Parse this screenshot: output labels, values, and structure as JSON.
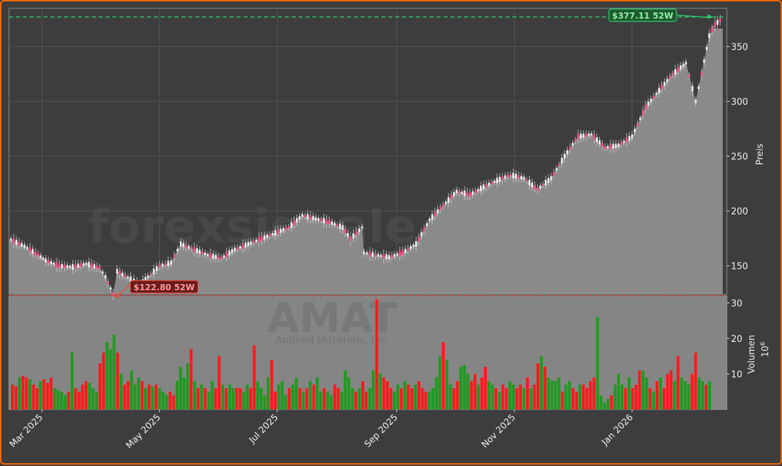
{
  "chart_data": [
    {
      "type": "candlestick",
      "title": "",
      "ylabel": "Preis",
      "ylim": [
        124,
        385
      ],
      "yticks": [
        150,
        200,
        250,
        300,
        350
      ],
      "x_range": [
        "2025-02-13",
        "2026-02-17"
      ],
      "xticks": [
        {
          "date": "2025-03-01",
          "label": "Mar 2025"
        },
        {
          "date": "2025-05-01",
          "label": "May 2025"
        },
        {
          "date": "2025-07-01",
          "label": "Jul 2025"
        },
        {
          "date": "2025-09-01",
          "label": "Sep 2025"
        },
        {
          "date": "2025-11-01",
          "label": "Nov 2025"
        },
        {
          "date": "2026-01-01",
          "label": "Jan 2026"
        }
      ],
      "area_fill_level": 366.5,
      "reference_lines": [
        {
          "name": "high",
          "value": 377.11,
          "label": "$377.11 52W",
          "color": "#2ecc71",
          "date": "2026-02-12"
        },
        {
          "name": "low",
          "value": 122.8,
          "label": "$122.80 52W",
          "color": "#e74c3c",
          "date": "2025-04-07"
        }
      ],
      "watermark": [
        "forexsignale.trade",
        "AMAT",
        "Applied Materials, Inc."
      ],
      "close_series": [
        [
          "2025-02-13",
          174
        ],
        [
          "2025-02-20",
          168
        ],
        [
          "2025-02-27",
          160
        ],
        [
          "2025-03-03",
          155
        ],
        [
          "2025-03-10",
          150
        ],
        [
          "2025-03-17",
          149
        ],
        [
          "2025-03-24",
          152
        ],
        [
          "2025-03-31",
          148
        ],
        [
          "2025-04-03",
          140
        ],
        [
          "2025-04-07",
          124
        ],
        [
          "2025-04-09",
          145
        ],
        [
          "2025-04-16",
          138
        ],
        [
          "2025-04-21",
          133
        ],
        [
          "2025-04-25",
          140
        ],
        [
          "2025-05-01",
          150
        ],
        [
          "2025-05-07",
          153
        ],
        [
          "2025-05-12",
          170
        ],
        [
          "2025-05-19",
          165
        ],
        [
          "2025-05-26",
          160
        ],
        [
          "2025-06-02",
          157
        ],
        [
          "2025-06-09",
          165
        ],
        [
          "2025-06-16",
          170
        ],
        [
          "2025-06-23",
          175
        ],
        [
          "2025-06-30",
          180
        ],
        [
          "2025-07-07",
          185
        ],
        [
          "2025-07-14",
          196
        ],
        [
          "2025-07-21",
          193
        ],
        [
          "2025-07-28",
          190
        ],
        [
          "2025-08-04",
          185
        ],
        [
          "2025-08-08",
          175
        ],
        [
          "2025-08-14",
          185
        ],
        [
          "2025-08-15",
          162
        ],
        [
          "2025-08-21",
          160
        ],
        [
          "2025-08-28",
          158
        ],
        [
          "2025-09-04",
          162
        ],
        [
          "2025-09-11",
          170
        ],
        [
          "2025-09-18",
          192
        ],
        [
          "2025-09-25",
          205
        ],
        [
          "2025-10-02",
          218
        ],
        [
          "2025-10-09",
          215
        ],
        [
          "2025-10-16",
          222
        ],
        [
          "2025-10-23",
          228
        ],
        [
          "2025-10-30",
          233
        ],
        [
          "2025-11-06",
          230
        ],
        [
          "2025-11-13",
          220
        ],
        [
          "2025-11-20",
          230
        ],
        [
          "2025-11-27",
          250
        ],
        [
          "2025-12-04",
          268
        ],
        [
          "2025-12-11",
          270
        ],
        [
          "2025-12-18",
          258
        ],
        [
          "2025-12-25",
          260
        ],
        [
          "2026-01-01",
          268
        ],
        [
          "2026-01-08",
          295
        ],
        [
          "2026-01-15",
          310
        ],
        [
          "2026-01-22",
          325
        ],
        [
          "2026-01-29",
          335
        ],
        [
          "2026-02-03",
          300
        ],
        [
          "2026-02-06",
          325
        ],
        [
          "2026-02-10",
          360
        ],
        [
          "2026-02-13",
          370
        ],
        [
          "2026-02-17",
          376
        ]
      ]
    },
    {
      "type": "bar",
      "ylabel": "Volumen",
      "ylabel2": "10",
      "ylabel2_exp": "6",
      "ylim": [
        0,
        32
      ],
      "yticks": [
        10,
        20,
        30
      ],
      "up_color": "#1f9a1f",
      "down_color": "#ff1a1a",
      "volume_series": [
        [
          7,
          0
        ],
        [
          6.5,
          0
        ],
        [
          9,
          1
        ],
        [
          9.5,
          0
        ],
        [
          9,
          0
        ],
        [
          8.5,
          1
        ],
        [
          7,
          0
        ],
        [
          6,
          0
        ],
        [
          8,
          1
        ],
        [
          8.5,
          0
        ],
        [
          7.5,
          0
        ],
        [
          9,
          0
        ],
        [
          6,
          1
        ],
        [
          5.5,
          1
        ],
        [
          5,
          1
        ],
        [
          4,
          1
        ],
        [
          5,
          0
        ],
        [
          16,
          1
        ],
        [
          6,
          0
        ],
        [
          5,
          0
        ],
        [
          7,
          0
        ],
        [
          8,
          0
        ],
        [
          7.5,
          1
        ],
        [
          6,
          1
        ],
        [
          5,
          1
        ],
        [
          13,
          0
        ],
        [
          16,
          0
        ],
        [
          19,
          1
        ],
        [
          17,
          1
        ],
        [
          21,
          1
        ],
        [
          16,
          0
        ],
        [
          10,
          1
        ],
        [
          7,
          0
        ],
        [
          8,
          0
        ],
        [
          11,
          1
        ],
        [
          7,
          1
        ],
        [
          9,
          1
        ],
        [
          8,
          0
        ],
        [
          6,
          1
        ],
        [
          7,
          0
        ],
        [
          6.5,
          1
        ],
        [
          7,
          0
        ],
        [
          6,
          1
        ],
        [
          5,
          1
        ],
        [
          4,
          1
        ],
        [
          5,
          0
        ],
        [
          4,
          0
        ],
        [
          8,
          1
        ],
        [
          12,
          1
        ],
        [
          9,
          1
        ],
        [
          13,
          1
        ],
        [
          17,
          0
        ],
        [
          8,
          1
        ],
        [
          6,
          0
        ],
        [
          7,
          1
        ],
        [
          6,
          0
        ],
        [
          5,
          1
        ],
        [
          8,
          1
        ],
        [
          6,
          0
        ],
        [
          15,
          0
        ],
        [
          7,
          1
        ],
        [
          6,
          0
        ],
        [
          7,
          1
        ],
        [
          6,
          1
        ],
        [
          6,
          0
        ],
        [
          6,
          0
        ],
        [
          5,
          1
        ],
        [
          7,
          1
        ],
        [
          6,
          0
        ],
        [
          18,
          0
        ],
        [
          8,
          1
        ],
        [
          6,
          1
        ],
        [
          4,
          1
        ],
        [
          9,
          1
        ],
        [
          14,
          0
        ],
        [
          5,
          0
        ],
        [
          7,
          1
        ],
        [
          8,
          1
        ],
        [
          4,
          1
        ],
        [
          6,
          0
        ],
        [
          7,
          1
        ],
        [
          9,
          1
        ],
        [
          6,
          0
        ],
        [
          5,
          1
        ],
        [
          6,
          0
        ],
        [
          8,
          1
        ],
        [
          7,
          0
        ],
        [
          9,
          1
        ],
        [
          5,
          1
        ],
        [
          6,
          0
        ],
        [
          5,
          1
        ],
        [
          4,
          1
        ],
        [
          7,
          0
        ],
        [
          6,
          0
        ],
        [
          5,
          1
        ],
        [
          11,
          1
        ],
        [
          9,
          1
        ],
        [
          6,
          1
        ],
        [
          5,
          0
        ],
        [
          6,
          1
        ],
        [
          8,
          0
        ],
        [
          5,
          0
        ],
        [
          6,
          1
        ],
        [
          11,
          1
        ],
        [
          31,
          0
        ],
        [
          10,
          1
        ],
        [
          9,
          0
        ],
        [
          8,
          0
        ],
        [
          6,
          0
        ],
        [
          5,
          1
        ],
        [
          7,
          1
        ],
        [
          6,
          0
        ],
        [
          8,
          1
        ],
        [
          7,
          0
        ],
        [
          6,
          0
        ],
        [
          7,
          1
        ],
        [
          8,
          0
        ],
        [
          6,
          0
        ],
        [
          5,
          0
        ],
        [
          5,
          1
        ],
        [
          6,
          1
        ],
        [
          9,
          1
        ],
        [
          15,
          1
        ],
        [
          19,
          0
        ],
        [
          14,
          1
        ],
        [
          7,
          1
        ],
        [
          6,
          0
        ],
        [
          8,
          0
        ],
        [
          12,
          1
        ],
        [
          12.5,
          1
        ],
        [
          10,
          1
        ],
        [
          8,
          0
        ],
        [
          10,
          0
        ],
        [
          7,
          1
        ],
        [
          9,
          0
        ],
        [
          12,
          0
        ],
        [
          8,
          1
        ],
        [
          7,
          1
        ],
        [
          6,
          0
        ],
        [
          5,
          1
        ],
        [
          7,
          0
        ],
        [
          6,
          0
        ],
        [
          8,
          1
        ],
        [
          7,
          1
        ],
        [
          6,
          0
        ],
        [
          7,
          0
        ],
        [
          6,
          1
        ],
        [
          9,
          0
        ],
        [
          6,
          1
        ],
        [
          7,
          0
        ],
        [
          13,
          0
        ],
        [
          15,
          1
        ],
        [
          12,
          0
        ],
        [
          9,
          1
        ],
        [
          8,
          1
        ],
        [
          8,
          1
        ],
        [
          9,
          1
        ],
        [
          5,
          0
        ],
        [
          7,
          1
        ],
        [
          8,
          1
        ],
        [
          6,
          0
        ],
        [
          5,
          0
        ],
        [
          7,
          1
        ],
        [
          7,
          0
        ],
        [
          6,
          0
        ],
        [
          8,
          0
        ],
        [
          9,
          0
        ],
        [
          26,
          1
        ],
        [
          4,
          1
        ],
        [
          2,
          1
        ],
        [
          3,
          1
        ],
        [
          4,
          0
        ],
        [
          7,
          1
        ],
        [
          10,
          1
        ],
        [
          7,
          1
        ],
        [
          6,
          0
        ],
        [
          9,
          1
        ],
        [
          6,
          0
        ],
        [
          7,
          0
        ],
        [
          11,
          0
        ],
        [
          11,
          1
        ],
        [
          9,
          1
        ],
        [
          6,
          0
        ],
        [
          5,
          1
        ],
        [
          8,
          0
        ],
        [
          9,
          1
        ],
        [
          6,
          0
        ],
        [
          10,
          0
        ],
        [
          11,
          0
        ],
        [
          8,
          1
        ],
        [
          15,
          0
        ],
        [
          9,
          1
        ],
        [
          8,
          1
        ],
        [
          7,
          1
        ],
        [
          10,
          0
        ],
        [
          16,
          0
        ],
        [
          9,
          1
        ],
        [
          8,
          1
        ],
        [
          7,
          0
        ],
        [
          8,
          1
        ]
      ]
    }
  ]
}
